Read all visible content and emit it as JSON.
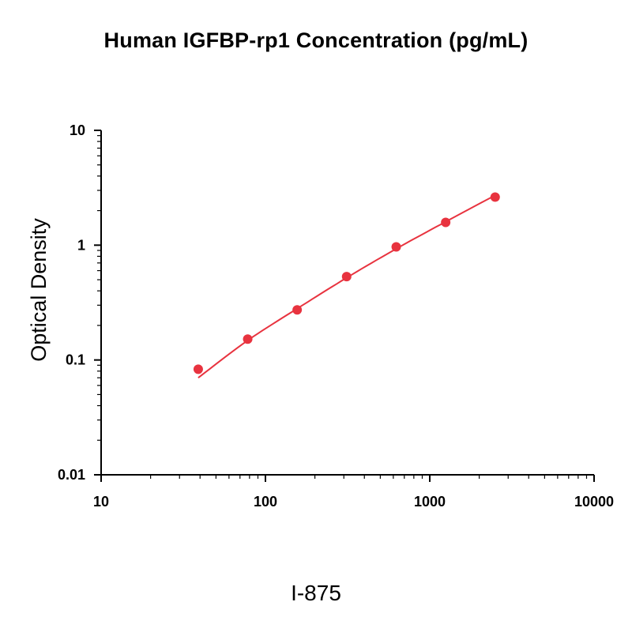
{
  "chart_data": {
    "type": "scatter",
    "title": "Human IGFBP-rp1 Concentration (pg/mL)",
    "xlabel": "",
    "ylabel": "Optical Density",
    "x_scale": "log",
    "y_scale": "log",
    "xlim": [
      10,
      10000
    ],
    "ylim": [
      0.01,
      10
    ],
    "x_ticks": [
      "10",
      "100",
      "1000",
      "10000"
    ],
    "y_ticks": [
      "0.01",
      "0.1",
      "1",
      "10"
    ],
    "grid": false,
    "legend": "none",
    "series": [
      {
        "points": {
          "x": [
            39,
            78,
            156,
            312,
            625,
            1250,
            2500
          ],
          "y": [
            0.083,
            0.152,
            0.273,
            0.532,
            0.966,
            1.58,
            2.62
          ]
        },
        "fit_curve": {
          "x": [
            39,
            78,
            156,
            312,
            625,
            1250,
            2500
          ],
          "y": [
            0.07,
            0.148,
            0.28,
            0.52,
            0.93,
            1.6,
            2.72
          ]
        },
        "color": "#e8333f"
      }
    ]
  },
  "footer": {
    "code": "I-875"
  }
}
